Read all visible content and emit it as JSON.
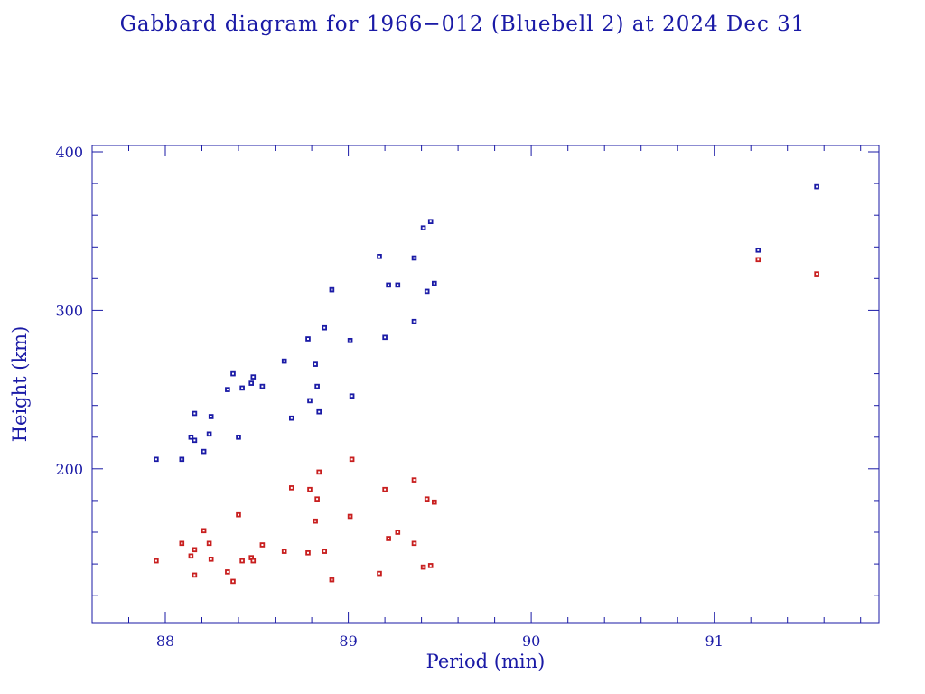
{
  "colors": {
    "axis": "#1a1aa6",
    "apogee": "#1a1aa6",
    "perigee": "#c81e1e",
    "background": "#ffffff"
  },
  "chart_data": {
    "type": "scatter",
    "title": "Gabbard diagram for 1966−012 (Bluebell 2) at 2024 Dec 31",
    "xlabel": "Period (min)",
    "ylabel": "Height (km)",
    "xlim": [
      87.6,
      91.9
    ],
    "ylim": [
      103,
      404
    ],
    "xticks": [
      88,
      89,
      90,
      91
    ],
    "xtick_labels": [
      "88",
      "89",
      "90",
      "91"
    ],
    "yticks": [
      200,
      300,
      400
    ],
    "ytick_labels": [
      "200",
      "300",
      "400"
    ],
    "grid": false,
    "legend": "none",
    "series": [
      {
        "color": "#1a1aa6",
        "x": [
          87.95,
          88.09,
          88.14,
          88.16,
          88.16,
          88.21,
          88.24,
          88.25,
          88.34,
          88.37,
          88.4,
          88.42,
          88.47,
          88.48,
          88.53,
          88.65,
          88.69,
          88.78,
          88.79,
          88.82,
          88.83,
          88.84,
          88.87,
          88.91,
          89.01,
          89.02,
          89.17,
          89.2,
          89.22,
          89.27,
          89.36,
          89.36,
          89.41,
          89.43,
          89.45,
          89.47,
          91.24,
          91.56
        ],
        "y": [
          206,
          206,
          220,
          218,
          235,
          211,
          222,
          233,
          250,
          260,
          220,
          251,
          254,
          258,
          252,
          268,
          232,
          282,
          243,
          266,
          252,
          236,
          289,
          313,
          281,
          246,
          334,
          283,
          316,
          316,
          333,
          293,
          352,
          312,
          356,
          317,
          338,
          378
        ]
      },
      {
        "color": "#c81e1e",
        "x": [
          87.95,
          88.09,
          88.14,
          88.16,
          88.16,
          88.21,
          88.24,
          88.25,
          88.34,
          88.37,
          88.4,
          88.42,
          88.47,
          88.48,
          88.53,
          88.65,
          88.69,
          88.78,
          88.79,
          88.82,
          88.83,
          88.84,
          88.87,
          88.91,
          89.01,
          89.02,
          89.17,
          89.2,
          89.22,
          89.27,
          89.36,
          89.36,
          89.41,
          89.43,
          89.45,
          89.47,
          91.24,
          91.56
        ],
        "y": [
          142,
          153,
          145,
          133,
          149,
          161,
          153,
          143,
          135,
          129,
          171,
          142,
          144,
          142,
          152,
          148,
          188,
          147,
          187,
          167,
          181,
          198,
          148,
          130,
          170,
          206,
          134,
          187,
          156,
          160,
          153,
          193,
          138,
          181,
          139,
          179,
          332,
          323
        ]
      }
    ]
  }
}
